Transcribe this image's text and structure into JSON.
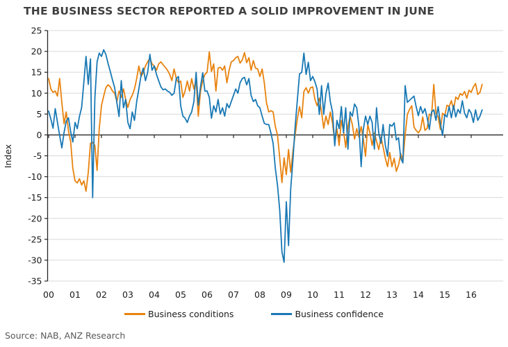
{
  "title": "THE BUSINESS SECTOR REPORTED A SOLID IMPROVEMENT IN JUNE",
  "source": "Source: NAB, ANZ Research",
  "colors": {
    "title_text": "#3f3f3f",
    "axis_line": "#262626",
    "gridline": "#d9d9d9",
    "axis_text": "#1a1a1a",
    "source_text": "#595959",
    "conditions_orange": "#e8820d",
    "confidence_blue": "#1878b4"
  },
  "chart_data": {
    "type": "line",
    "title": "THE BUSINESS SECTOR REPORTED A SOLID IMPROVEMENT IN JUNE",
    "xlabel": "",
    "ylabel": "Index",
    "ylim": [
      -35,
      25
    ],
    "ytick_step": 5,
    "y_tick_labels": [
      "25",
      "20",
      "15",
      "10",
      "5",
      "0",
      "-5",
      "-10",
      "-15",
      "-20",
      "-25",
      "-30",
      "-35"
    ],
    "x_tick_labels": [
      "00",
      "01",
      "02",
      "03",
      "04",
      "05",
      "06",
      "07",
      "08",
      "09",
      "10",
      "11",
      "12",
      "13",
      "14",
      "15",
      "16"
    ],
    "frequency": "monthly",
    "start_year": 2000,
    "end_point": "2016-06",
    "grid": "horizontal",
    "legend_position": "bottom",
    "series": [
      {
        "name": "Business conditions",
        "color": "#e8820d",
        "values": [
          13.5,
          11,
          10.2,
          10.5,
          9.3,
          13.5,
          7.7,
          2.7,
          5.5,
          1,
          -1.7,
          -8,
          -11,
          -11.5,
          -10.5,
          -12,
          -11,
          -13.5,
          -9,
          -2,
          -1.8,
          -2.5,
          -8.5,
          1.5,
          7,
          9.3,
          11.3,
          12,
          11.5,
          10.5,
          10,
          8,
          10.5,
          9,
          11,
          8.5,
          6.6,
          8.5,
          9.5,
          11,
          13.5,
          16.5,
          14,
          15,
          16.5,
          17.5,
          18.4,
          17,
          16.5,
          15.5,
          17,
          17.5,
          16.8,
          16.2,
          15.5,
          14.5,
          13,
          15.8,
          13.5,
          12.5,
          12.9,
          9,
          10.5,
          12.9,
          10.5,
          13.5,
          11,
          13.2,
          4.5,
          10.4,
          13,
          14.5,
          15,
          19.9,
          15.2,
          17,
          10.5,
          16,
          16.2,
          15.5,
          16.5,
          12.5,
          15.5,
          17.5,
          17.8,
          18.5,
          18.8,
          17.2,
          18,
          19.7,
          17.3,
          18.5,
          15.5,
          17.8,
          16,
          15.8,
          14,
          15.8,
          12.5,
          7.7,
          5.5,
          5.8,
          5.5,
          2,
          0,
          -5.5,
          -11.4,
          -5.5,
          -9.5,
          -3.5,
          -8.9,
          -4,
          0,
          3.8,
          6.8,
          4.1,
          10.4,
          11.3,
          10,
          11.3,
          11.5,
          8.5,
          7,
          8.8,
          5.5,
          1.6,
          4.5,
          2.5,
          5.5,
          2.8,
          -1.7,
          1.5,
          -2.5,
          3.5,
          1,
          -3,
          2,
          4.5,
          2.5,
          -1,
          1.5,
          -0.5,
          2,
          -1,
          -5.1,
          2.5,
          0.5,
          -2.5,
          0.5,
          -1.5,
          -3.5,
          -0.5,
          -2.9,
          -5.6,
          -7.6,
          -4.2,
          -7.6,
          -5.6,
          -8.7,
          -7.2,
          -4.5,
          -6.1,
          0,
          4.9,
          6.1,
          7,
          1.9,
          1.1,
          0.5,
          1.3,
          4.3,
          1.1,
          1.6,
          5,
          4.6,
          12.1,
          5.2,
          4.3,
          1.3,
          5.2,
          4.6,
          7.1,
          6.8,
          8.2,
          6.1,
          9.1,
          8.5,
          9.9,
          9.5,
          10.4,
          8.8,
          10.7,
          10.2,
          11.5,
          12.3,
          9.7,
          10.2,
          12.1
        ]
      },
      {
        "name": "Business confidence",
        "color": "#1878b4",
        "values": [
          5.7,
          3.8,
          1.6,
          6.3,
          3,
          -0.1,
          -3.1,
          0.6,
          3.3,
          4.1,
          0.8,
          -1.7,
          3,
          1.5,
          4.4,
          6.6,
          12.7,
          18.8,
          12.1,
          18.2,
          -15,
          8.8,
          17.5,
          19.6,
          18.8,
          20.4,
          19.3,
          17.1,
          15.2,
          13.2,
          11.3,
          7.7,
          4.4,
          13,
          6.5,
          8.5,
          3,
          1.5,
          5.5,
          3.5,
          8,
          11,
          14.3,
          16,
          13,
          15,
          19.3,
          15.5,
          16.5,
          14.5,
          13,
          11.5,
          10.8,
          11,
          10.5,
          10.2,
          9.5,
          10,
          13.5,
          14,
          7,
          4.5,
          4,
          3,
          4.5,
          5.5,
          8,
          15,
          7.1,
          11.5,
          14.9,
          10.5,
          10.5,
          9,
          4,
          7,
          5.5,
          8.5,
          5,
          6.5,
          4.5,
          7.5,
          6.5,
          8,
          9.5,
          11,
          10,
          12.5,
          13.5,
          13.8,
          12,
          13.5,
          9.5,
          8,
          8.5,
          7,
          6.5,
          4.5,
          2.8,
          2.5,
          2.5,
          0.5,
          -2,
          -8,
          -12,
          -18,
          -28,
          -30.5,
          -16,
          -26.5,
          -13,
          -6,
          2,
          8.2,
          14.6,
          15,
          19.6,
          14.5,
          17.4,
          13,
          14,
          12.7,
          11,
          4.9,
          11.8,
          4.9,
          9.9,
          12.4,
          8,
          5.5,
          -2.6,
          3.5,
          1.5,
          6.8,
          0.5,
          6.5,
          -3.4,
          5.5,
          4.5,
          7.4,
          6.5,
          2,
          -7.6,
          1.3,
          4.5,
          2.5,
          4.5,
          3,
          -3.4,
          6.5,
          0.5,
          -2,
          2.5,
          -2.5,
          -5.1,
          2.5,
          2.1,
          2.9,
          -1.2,
          -0.7,
          -5.6,
          -6.7,
          11.8,
          7.8,
          8.3,
          8.8,
          9.3,
          6.8,
          4.6,
          6.8,
          5.2,
          6.3,
          4.1,
          1.3,
          5.5,
          6,
          3.5,
          6.8,
          2.7,
          -0.1,
          4.9,
          4.3,
          6.8,
          4.1,
          7.1,
          4.3,
          6.1,
          5.2,
          8.2,
          5.2,
          4.1,
          6.1,
          5.2,
          3,
          6,
          3.5,
          4.5,
          6
        ]
      }
    ]
  }
}
